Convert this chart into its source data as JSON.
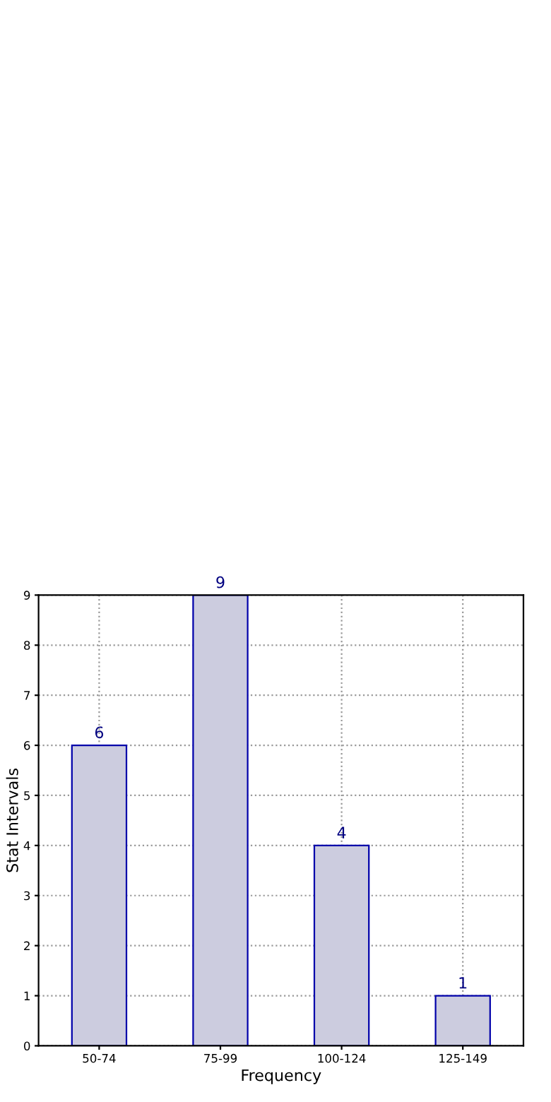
{
  "chart_data": {
    "type": "bar",
    "xlabel": "Frequency",
    "ylabel": "Stat Intervals",
    "categories": [
      "50-74",
      "75-99",
      "100-124",
      "125-149"
    ],
    "values": [
      6,
      9,
      4,
      1
    ],
    "color": "#ccccdf",
    "ylim": [
      0,
      9
    ],
    "yticks": [
      0,
      1,
      2,
      3,
      4,
      5,
      6,
      7,
      8,
      9
    ],
    "grid": true,
    "data_labels": true
  }
}
